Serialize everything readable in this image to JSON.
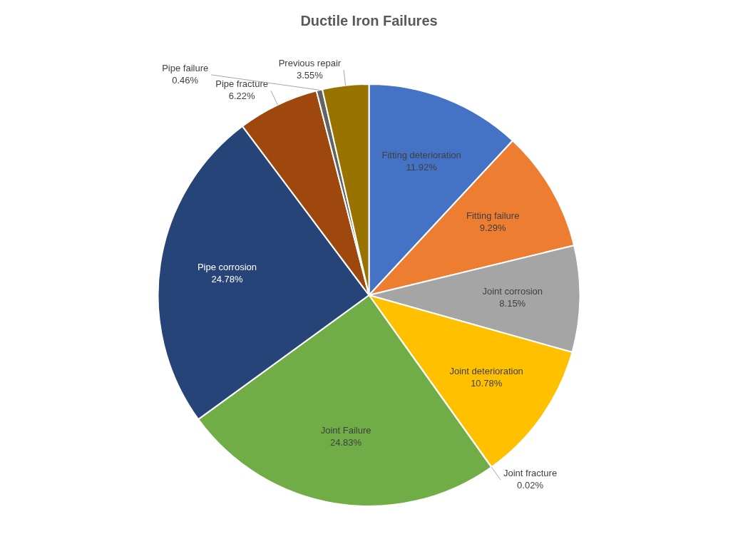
{
  "chart_data": {
    "type": "pie",
    "title": "Ductile Iron Failures",
    "categories": [
      "Fitting deterioration",
      "Fitting failure",
      "Joint corrosion",
      "Joint deterioration",
      "Joint fracture",
      "Joint Failure",
      "Pipe corrosion",
      "Pipe fracture",
      "Pipe failure",
      "Previous repair"
    ],
    "values": [
      11.92,
      9.29,
      8.15,
      10.78,
      0.02,
      24.83,
      24.78,
      6.22,
      0.46,
      3.55
    ],
    "colors": [
      "#4472c4",
      "#ed7d31",
      "#a5a5a5",
      "#ffc000",
      "#5b9bd5",
      "#70ad47",
      "#264478",
      "#9e480e",
      "#636363",
      "#997300"
    ],
    "value_labels": [
      "11.92%",
      "9.29%",
      "8.15%",
      "10.78%",
      "0.02%",
      "24.83%",
      "24.78%",
      "6.22%",
      "0.46%",
      "3.55%"
    ],
    "legend": false
  }
}
